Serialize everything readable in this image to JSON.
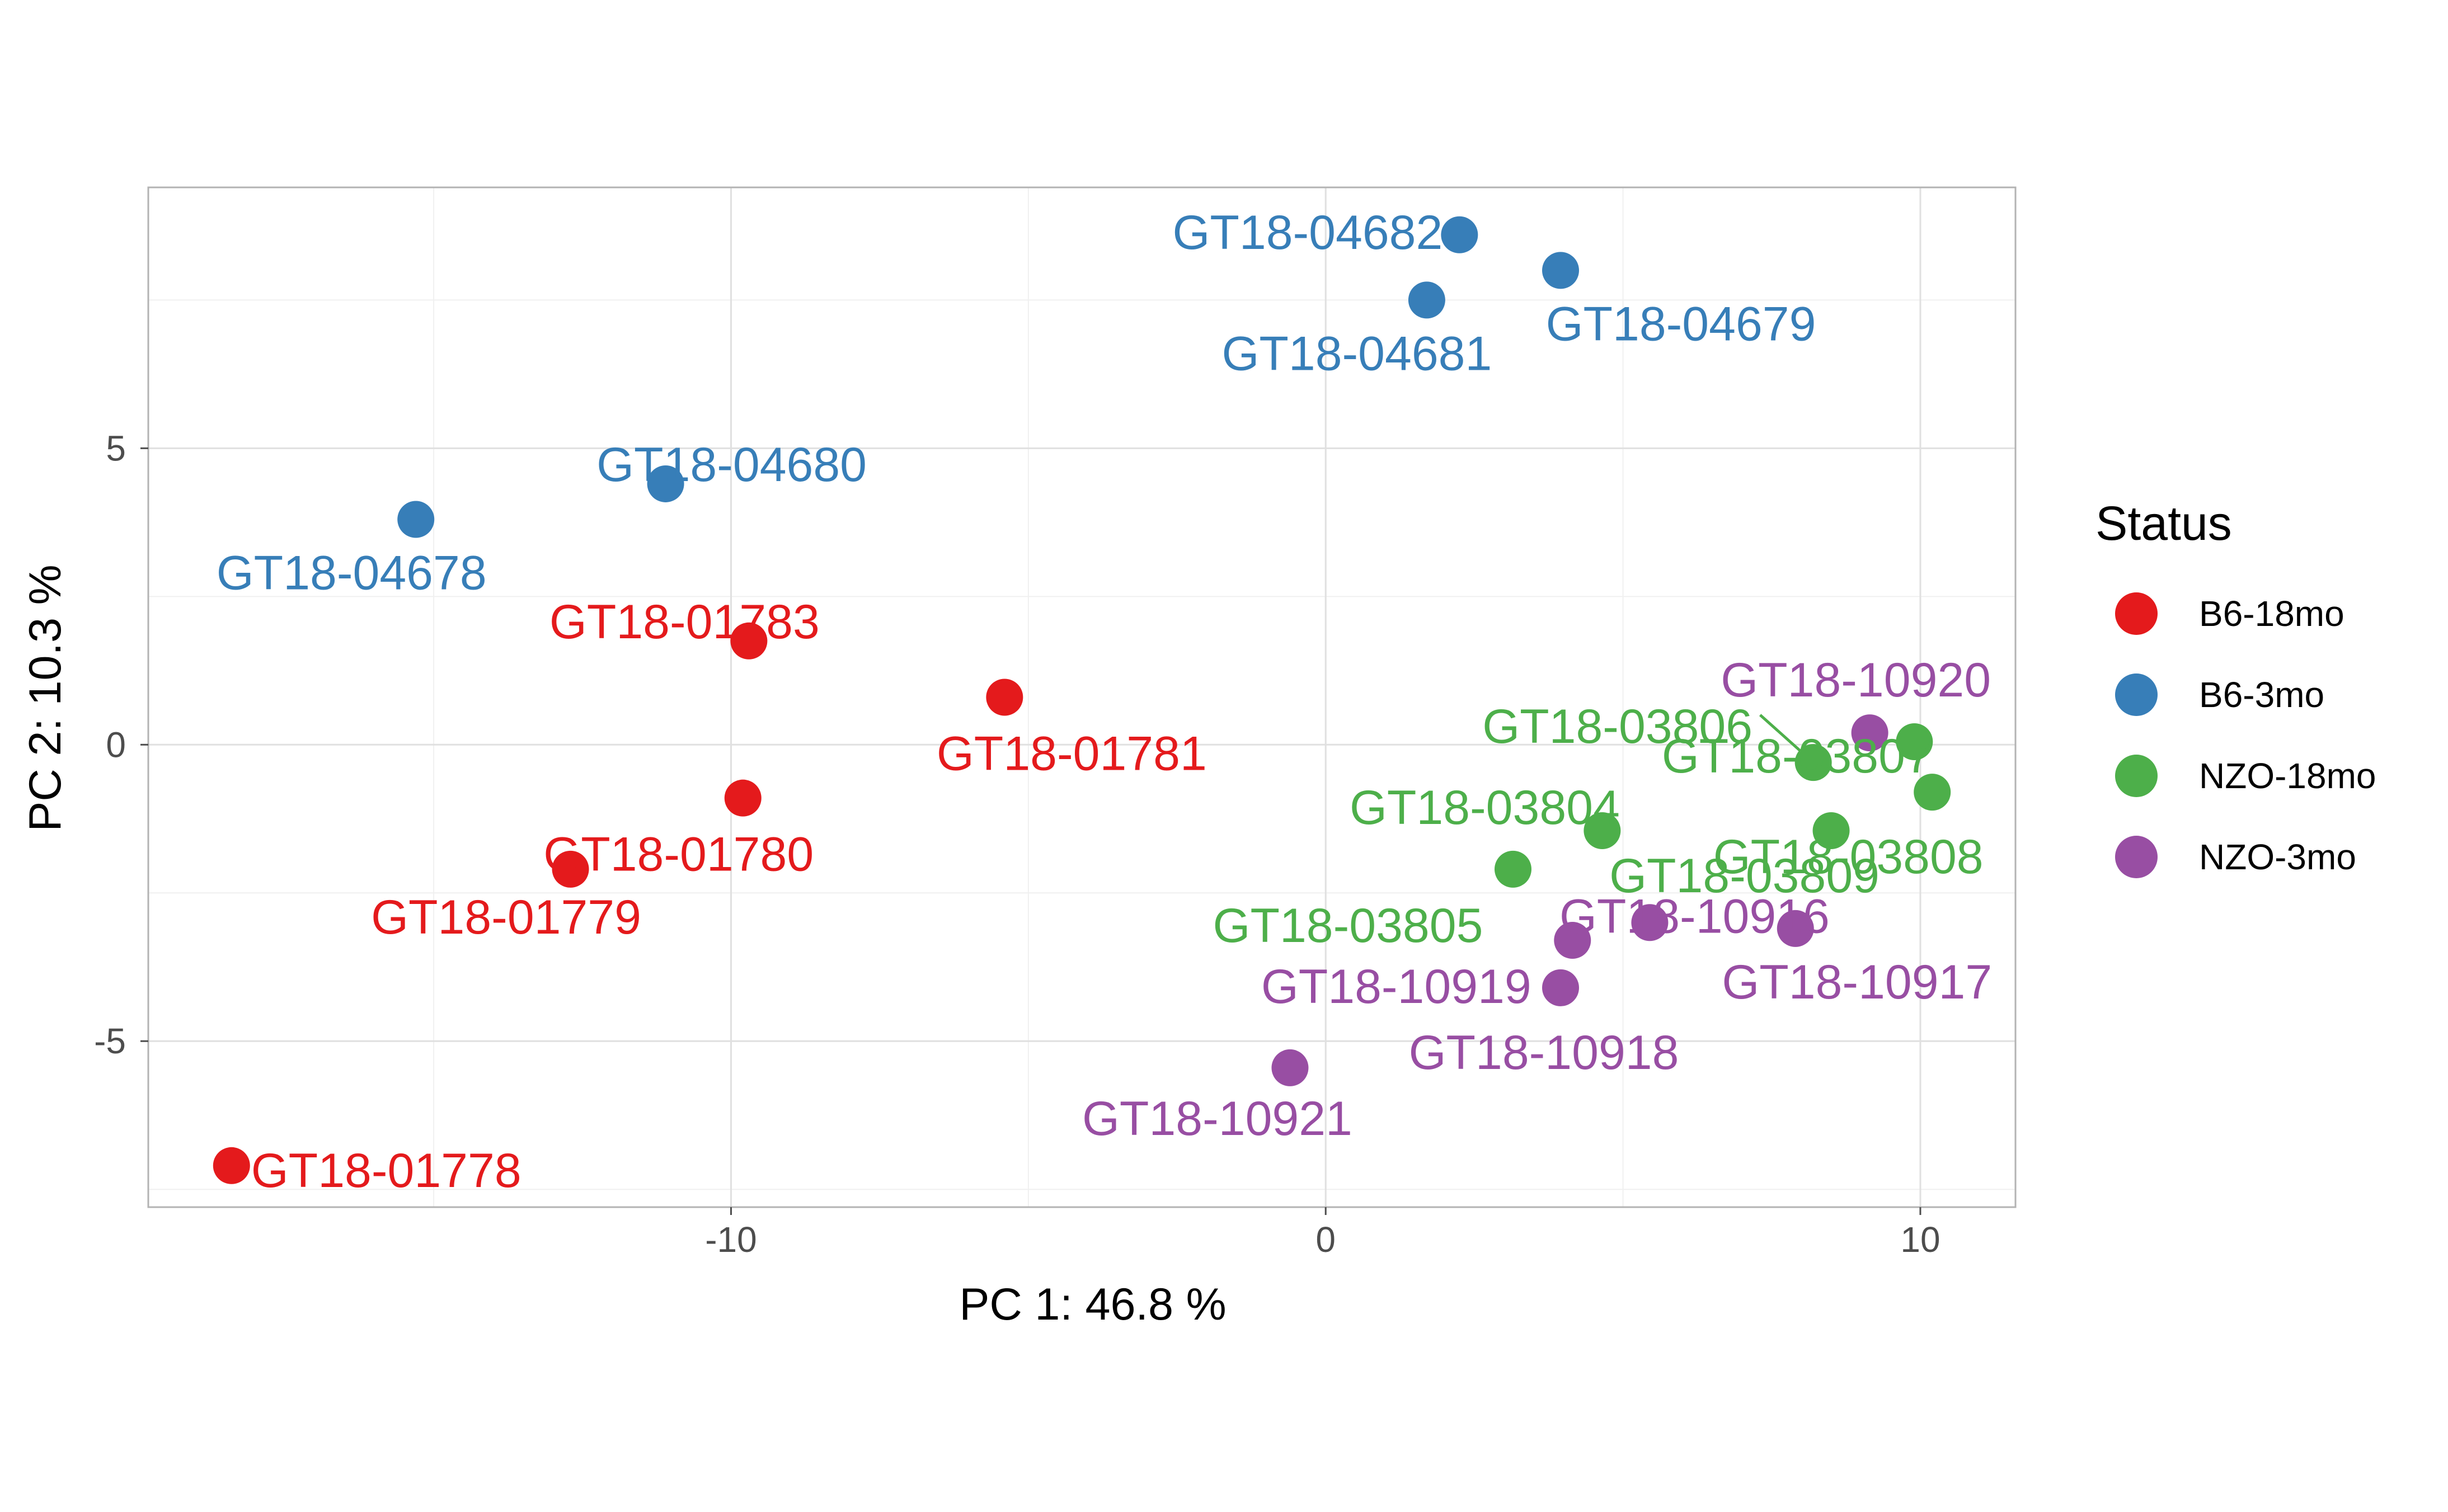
{
  "chart_data": {
    "type": "scatter",
    "title": "",
    "xlabel": "PC 1: 46.8 %",
    "ylabel": "PC 2: 10.3 %",
    "xlim": [
      -19.8,
      11.6
    ],
    "ylim": [
      -7.8,
      9.4
    ],
    "x_ticks": [
      -10,
      0,
      10
    ],
    "x_tick_labels": [
      "-10",
      "0",
      "10"
    ],
    "y_ticks": [
      -5,
      0,
      5
    ],
    "y_tick_labels": [
      "-5",
      "0",
      "5"
    ],
    "grid": true,
    "legend": {
      "title": "Status",
      "position": "right",
      "entries": [
        {
          "label": "B6-18mo",
          "color": "#E41A1C"
        },
        {
          "label": "B6-3mo",
          "color": "#377EB8"
        },
        {
          "label": "NZO-18mo",
          "color": "#4DAF4A"
        },
        {
          "label": "NZO-3mo",
          "color": "#984EA3"
        }
      ]
    },
    "series": [
      {
        "name": "B6-18mo",
        "color": "#E41A1C",
        "points": [
          {
            "label": "GT18-01778",
            "x": -18.4,
            "y": -7.1
          },
          {
            "label": "GT18-01779",
            "x": -12.7,
            "y": -2.1
          },
          {
            "label": "GT18-01780",
            "x": -9.8,
            "y": -0.9
          },
          {
            "label": "GT18-01781",
            "x": -5.4,
            "y": 0.8
          },
          {
            "label": "GT18-01783",
            "x": -9.7,
            "y": 1.75
          }
        ]
      },
      {
        "name": "B6-3mo",
        "color": "#377EB8",
        "points": [
          {
            "label": "GT18-04678",
            "x": -15.3,
            "y": 3.8
          },
          {
            "label": "GT18-04680",
            "x": -11.1,
            "y": 4.4
          },
          {
            "label": "GT18-04681",
            "x": 1.7,
            "y": 7.5
          },
          {
            "label": "GT18-04682",
            "x": 2.25,
            "y": 8.6
          },
          {
            "label": "GT18-04679",
            "x": 3.95,
            "y": 8.0
          }
        ]
      },
      {
        "name": "NZO-18mo",
        "color": "#4DAF4A",
        "points": [
          {
            "label": "GT18-03804",
            "x": 4.65,
            "y": -1.45
          },
          {
            "label": "GT18-03805",
            "x": 3.15,
            "y": -2.1
          },
          {
            "label": "GT18-03806",
            "x": 8.2,
            "y": -0.3
          },
          {
            "label": "GT18-03807",
            "x": 9.9,
            "y": 0.05
          },
          {
            "label": "GT18-03808",
            "x": 10.2,
            "y": -0.8
          },
          {
            "label": "GT18-03809",
            "x": 8.5,
            "y": -1.45
          }
        ]
      },
      {
        "name": "NZO-3mo",
        "color": "#984EA3",
        "points": [
          {
            "label": "GT18-10916",
            "x": 5.45,
            "y": -3.0
          },
          {
            "label": "GT18-10917",
            "x": 7.9,
            "y": -3.1
          },
          {
            "label": "GT18-10918",
            "x": 3.95,
            "y": -4.1
          },
          {
            "label": "GT18-10919",
            "x": 4.15,
            "y": -3.3
          },
          {
            "label": "GT18-10920",
            "x": 9.15,
            "y": 0.2
          },
          {
            "label": "GT18-10921",
            "x": -0.6,
            "y": -5.45
          }
        ]
      }
    ]
  }
}
